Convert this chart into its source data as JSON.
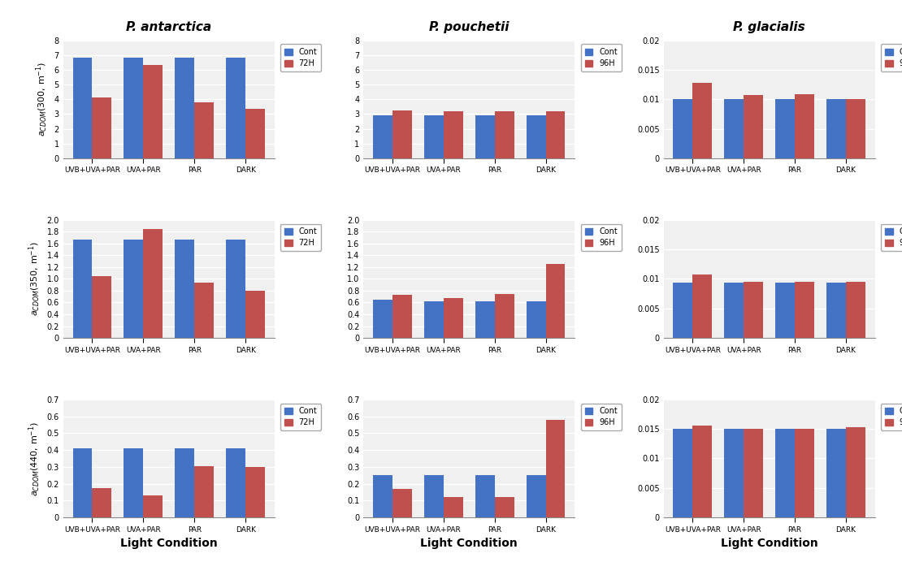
{
  "col_titles": [
    "P. antarctica",
    "P. pouchetii",
    "P. glacialis"
  ],
  "xlabel": "Light Condition",
  "x_categories": [
    "UVB+UVA+PAR",
    "UVA+PAR",
    "PAR",
    "DARK"
  ],
  "legend_labels_col0": [
    "Cont",
    "72H"
  ],
  "legend_labels_col12": [
    "Cont",
    "96H"
  ],
  "bar_color_blue": "#4472C4",
  "bar_color_red": "#C0504D",
  "background_color": "#FFFFFF",
  "subplot_bg": "#F2F2F2",
  "data": {
    "ant_300": {
      "cont": [
        6.8,
        6.8,
        6.8,
        6.8
      ],
      "treatment": [
        4.1,
        6.3,
        3.8,
        3.35
      ]
    },
    "ant_350": {
      "cont": [
        1.67,
        1.67,
        1.67,
        1.67
      ],
      "treatment": [
        1.05,
        1.85,
        0.93,
        0.8
      ]
    },
    "ant_440": {
      "cont": [
        0.41,
        0.41,
        0.41,
        0.41
      ],
      "treatment": [
        0.175,
        0.13,
        0.305,
        0.3
      ]
    },
    "pouch_300": {
      "cont": [
        2.9,
        2.9,
        2.9,
        2.9
      ],
      "treatment": [
        3.25,
        3.18,
        3.18,
        3.2
      ]
    },
    "pouch_350": {
      "cont": [
        0.65,
        0.62,
        0.62,
        0.62
      ],
      "treatment": [
        0.73,
        0.68,
        0.75,
        1.25
      ]
    },
    "pouch_440": {
      "cont": [
        0.25,
        0.25,
        0.25,
        0.25
      ],
      "treatment": [
        0.17,
        0.12,
        0.12,
        0.58
      ]
    },
    "glac_300": {
      "cont": [
        0.0101,
        0.0101,
        0.0101,
        0.0101
      ],
      "treatment": [
        0.0128,
        0.0107,
        0.0108,
        0.0101
      ]
    },
    "glac_350": {
      "cont": [
        0.0093,
        0.0093,
        0.0093,
        0.0093
      ],
      "treatment": [
        0.0107,
        0.0095,
        0.0095,
        0.0095
      ]
    },
    "glac_440": {
      "cont": [
        0.015,
        0.015,
        0.015,
        0.015
      ],
      "treatment": [
        0.0155,
        0.015,
        0.015,
        0.0153
      ]
    }
  },
  "ylims": {
    "ant_300": [
      0,
      8
    ],
    "ant_350": [
      0,
      2
    ],
    "ant_440": [
      0,
      0.7
    ],
    "pouch_300": [
      0,
      8
    ],
    "pouch_350": [
      0,
      2
    ],
    "pouch_440": [
      0,
      0.7
    ],
    "glac_300": [
      0,
      0.02
    ],
    "glac_350": [
      0,
      0.02
    ],
    "glac_440": [
      0,
      0.02
    ]
  },
  "yticks": {
    "ant_300": [
      0,
      1,
      2,
      3,
      4,
      5,
      6,
      7,
      8
    ],
    "ant_350": [
      0,
      0.2,
      0.4,
      0.6,
      0.8,
      1.0,
      1.2,
      1.4,
      1.6,
      1.8,
      2.0
    ],
    "ant_440": [
      0,
      0.1,
      0.2,
      0.3,
      0.4,
      0.5,
      0.6,
      0.7
    ],
    "pouch_300": [
      0,
      1,
      2,
      3,
      4,
      5,
      6,
      7,
      8
    ],
    "pouch_350": [
      0,
      0.2,
      0.4,
      0.6,
      0.8,
      1.0,
      1.2,
      1.4,
      1.6,
      1.8,
      2.0
    ],
    "pouch_440": [
      0,
      0.1,
      0.2,
      0.3,
      0.4,
      0.5,
      0.6,
      0.7
    ],
    "glac_300": [
      0,
      0.005,
      0.01,
      0.015,
      0.02
    ],
    "glac_350": [
      0,
      0.005,
      0.01,
      0.015,
      0.02
    ],
    "glac_440": [
      0,
      0.005,
      0.01,
      0.015,
      0.02
    ]
  },
  "row_ylabels": [
    "a_CDOM(300, m⁻¹)",
    "a_CDOM(350, m⁻¹)",
    "a_CDOM(440, m⁻¹)"
  ]
}
